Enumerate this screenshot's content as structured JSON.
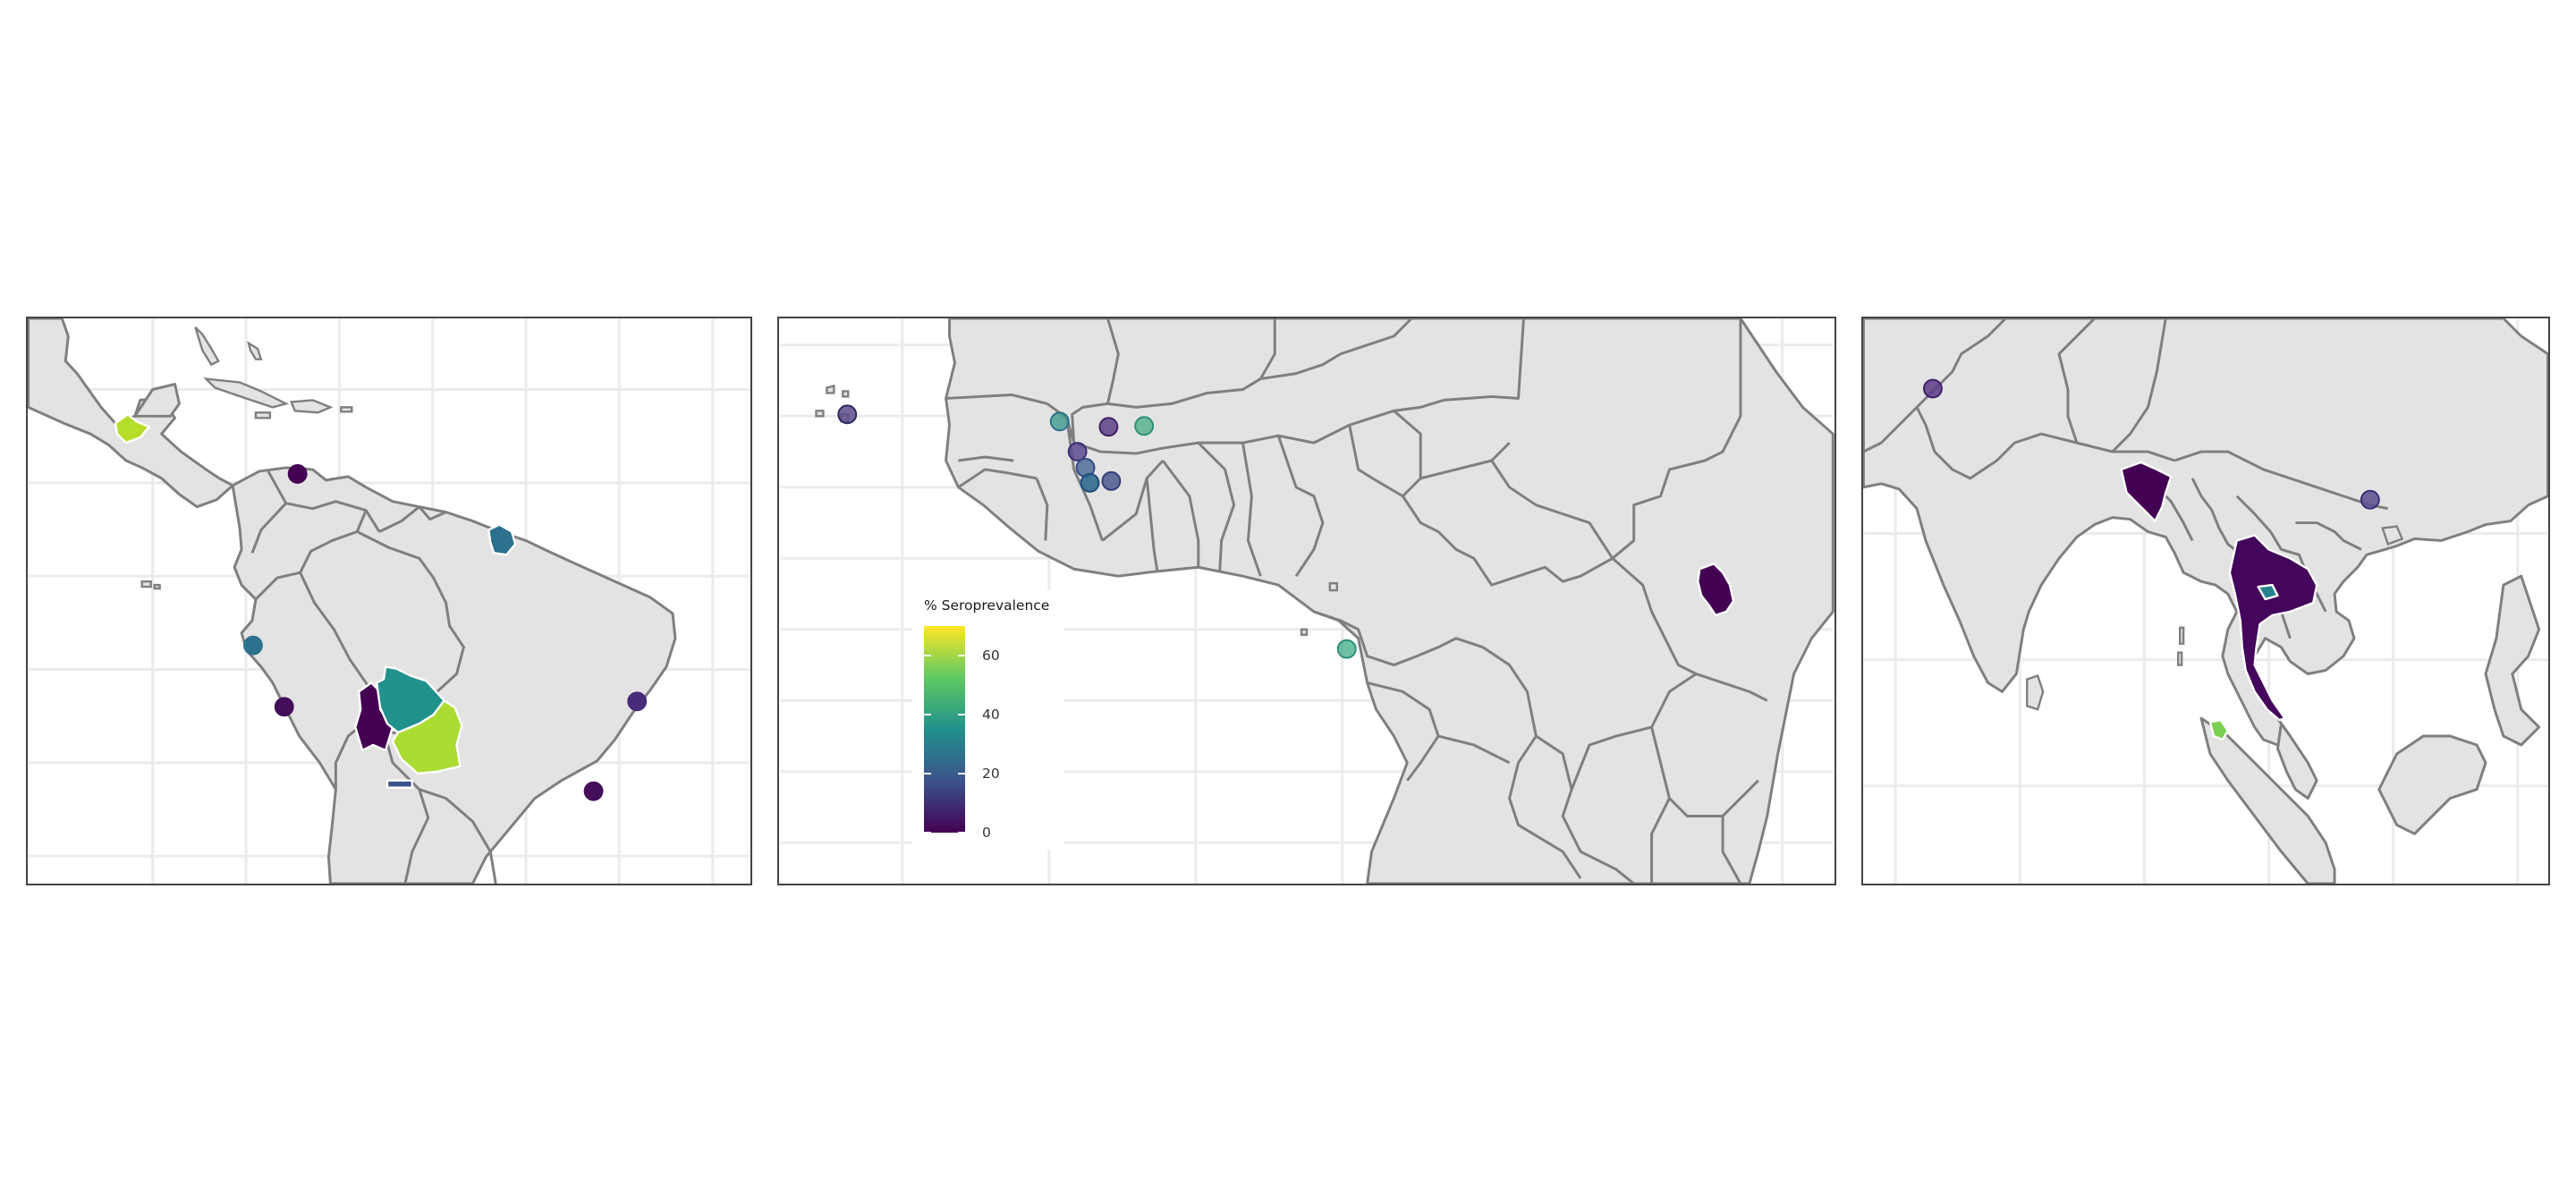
{
  "legend": {
    "title": "% Seroprevalence",
    "ticks": [
      {
        "label": "0",
        "value": 0
      },
      {
        "label": "20",
        "value": 20
      },
      {
        "label": "40",
        "value": 40
      },
      {
        "label": "60",
        "value": 60
      }
    ],
    "range": [
      0,
      70
    ],
    "scale": "viridis"
  },
  "colors": {
    "land": "#e3e3e3",
    "border": "#7f7f7f",
    "grid": "#ebebeb",
    "region_outline": "#ffffff"
  },
  "panels": [
    {
      "region": "Americas",
      "shaded_regions": [
        {
          "area": "Southern Mexico",
          "seroprevalence": 60
        },
        {
          "area": "French Guiana",
          "seroprevalence": 20
        },
        {
          "area": "Western Bolivia",
          "seroprevalence": 1
        },
        {
          "area": "Northern Bolivia",
          "seroprevalence": 38
        },
        {
          "area": "Eastern Bolivia",
          "seroprevalence": 63
        },
        {
          "area": "Northern Argentina",
          "seroprevalence": 8
        }
      ],
      "sites": [
        {
          "place": "Northern Colombia",
          "seroprevalence": 2
        },
        {
          "place": "Northern Peru",
          "seroprevalence": 20
        },
        {
          "place": "Southern Peru",
          "seroprevalence": 3
        },
        {
          "place": "Eastern Brazil",
          "seroprevalence": 5
        },
        {
          "place": "Southeast Brazil",
          "seroprevalence": 3
        }
      ]
    },
    {
      "region": "Africa",
      "shaded_regions": [
        {
          "area": "Uganda",
          "seroprevalence": 1
        }
      ],
      "sites": [
        {
          "place": "Cape Verde",
          "seroprevalence": 10
        },
        {
          "place": "Senegal",
          "seroprevalence": 35
        },
        {
          "place": "Mali west",
          "seroprevalence": 12
        },
        {
          "place": "Mali central",
          "seroprevalence": 10
        },
        {
          "place": "Burkina Faso",
          "seroprevalence": 45
        },
        {
          "place": "Guinea / Mali border",
          "seroprevalence": 15
        },
        {
          "place": "Guinea",
          "seroprevalence": 22
        },
        {
          "place": "Côte d'Ivoire north",
          "seroprevalence": 14
        },
        {
          "place": "Gabon",
          "seroprevalence": 45
        }
      ]
    },
    {
      "region": "Asia",
      "shaded_regions": [
        {
          "area": "Bangladesh",
          "seroprevalence": 1
        },
        {
          "area": "Thailand",
          "seroprevalence": 2
        },
        {
          "area": "Bangkok",
          "seroprevalence": 30
        },
        {
          "area": "Northern Sumatra",
          "seroprevalence": 55
        }
      ],
      "sites": [
        {
          "place": "Pakistan",
          "seroprevalence": 10
        },
        {
          "place": "Northern Vietnam",
          "seroprevalence": 12
        }
      ]
    }
  ]
}
